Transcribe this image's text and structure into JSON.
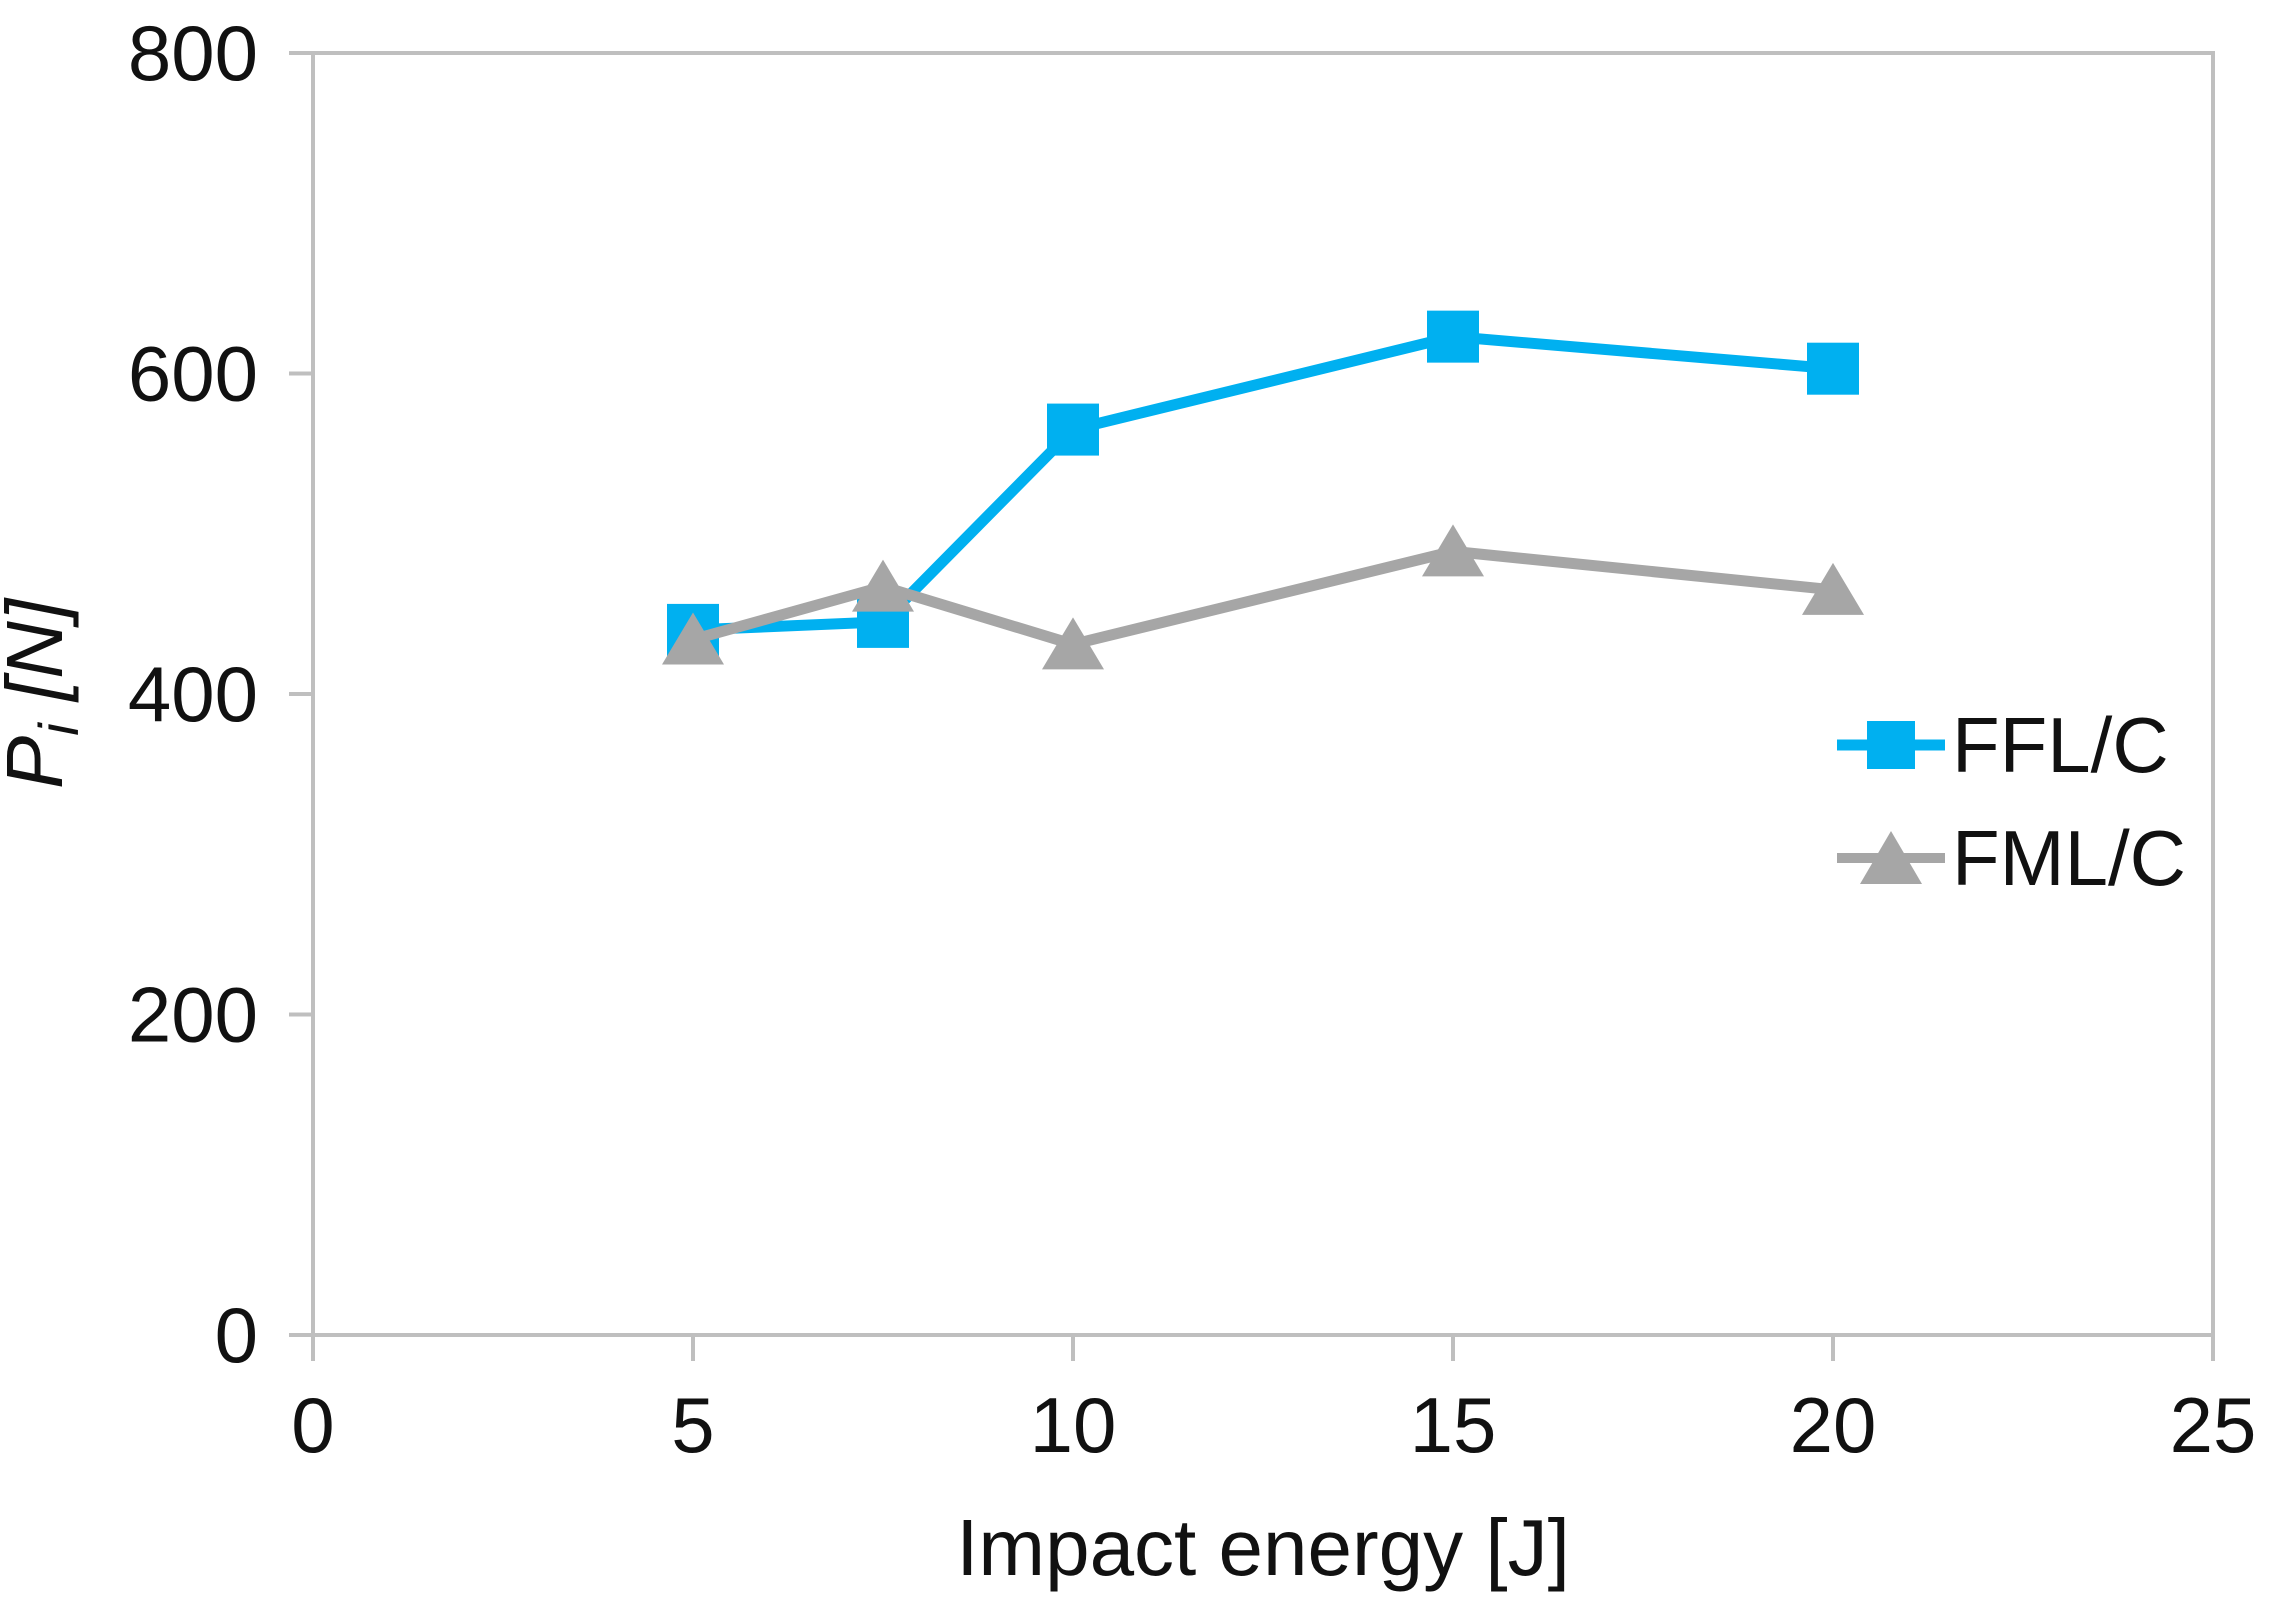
{
  "chart_data": {
    "type": "line",
    "title": "",
    "xlabel": "Impact energy [J]",
    "ylabel": {
      "main": "P",
      "sub": "i",
      "unit": " [N]"
    },
    "xlim": [
      0,
      25
    ],
    "ylim": [
      0,
      800
    ],
    "x_ticks": [
      0,
      5,
      10,
      15,
      20,
      25
    ],
    "y_ticks": [
      0,
      200,
      400,
      600,
      800
    ],
    "grid": false,
    "legend_position": "right-middle",
    "x": [
      5,
      7.5,
      10,
      15,
      20
    ],
    "series": [
      {
        "name": "FFL/C",
        "marker": "square",
        "color": "#00B0F0",
        "values": [
          440,
          445,
          565,
          623,
          603
        ]
      },
      {
        "name": "FML/C",
        "marker": "triangle",
        "color": "#A6A6A6",
        "values": [
          434,
          467,
          431,
          489,
          465
        ]
      }
    ]
  },
  "colors": {
    "axis": "#BFBFBF",
    "text": "#111111",
    "background": "#FFFFFF"
  }
}
